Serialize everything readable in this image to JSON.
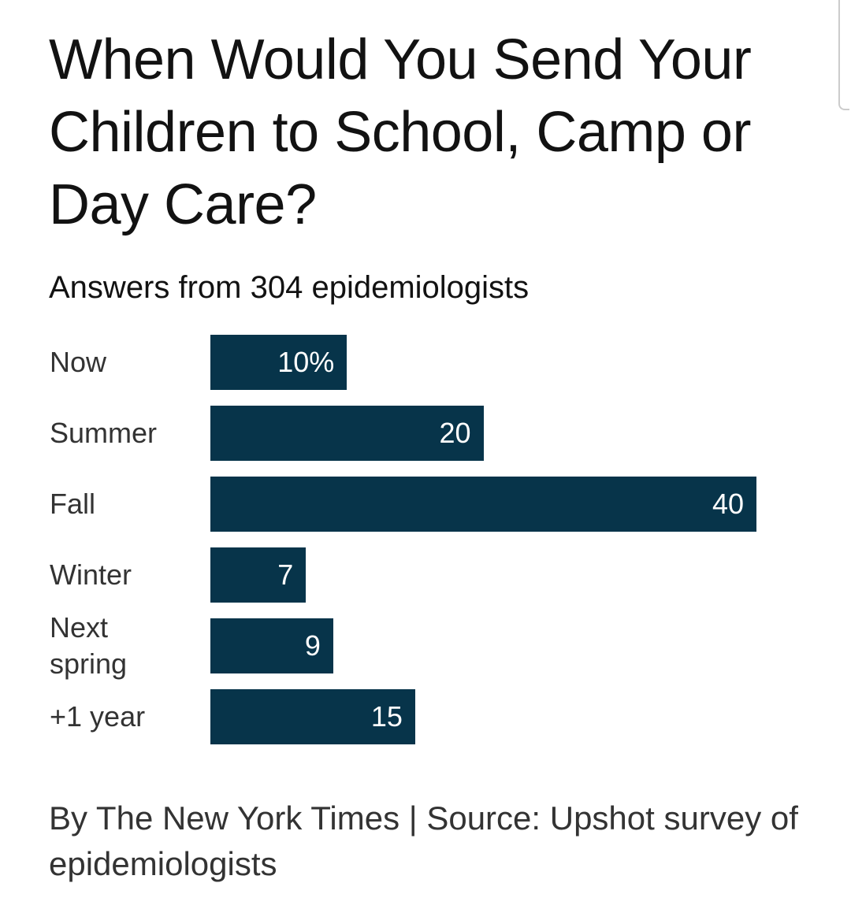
{
  "chart_data": {
    "type": "bar",
    "title": "When Would You Send Your Children to School, Camp or Day Care?",
    "subtitle": "Answers from 304 epidemiologists",
    "categories": [
      "Now",
      "Summer",
      "Fall",
      "Winter",
      "Next spring",
      "+1 year"
    ],
    "values": [
      10,
      20,
      40,
      7,
      9,
      15
    ],
    "value_labels": [
      "10%",
      "20",
      "40",
      "7",
      "9",
      "15"
    ],
    "color": "#07344a",
    "source": "By The New York Times | Source: Upshot survey of epidemiologists"
  }
}
